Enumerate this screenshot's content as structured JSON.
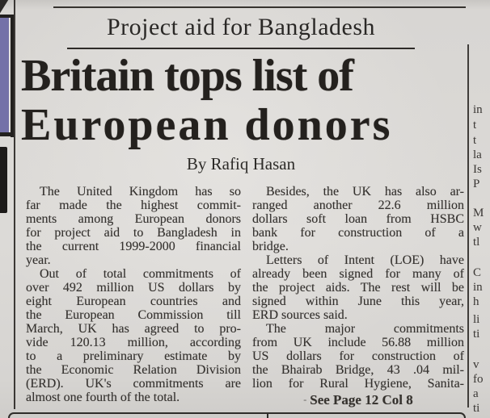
{
  "kicker": "Project aid for Bangladesh",
  "headline": {
    "line1": "Britain tops list of",
    "line2": "European donors"
  },
  "byline": "By Rafiq Hasan",
  "columns": {
    "left": [
      {
        "lines": [
          "The United Kingdom has so",
          "far made the highest commit-",
          "ments among European donors",
          "for project aid to Bangladesh in",
          "the current 1999-2000 financial",
          "year."
        ]
      },
      {
        "lines": [
          "Out of total commitments of",
          "over 492 million US dollars by",
          "eight European countries and",
          "the European Commission till",
          "March, UK has agreed to pro-",
          "vide 120.13 million, according",
          "to a preliminary estimate by",
          "the Economic Relation Division",
          "(ERD). UK's commitments are",
          "almost one fourth of the total."
        ]
      }
    ],
    "right": [
      {
        "lines": [
          "Besides, the UK has also ar-",
          "ranged another 22.6 million",
          "dollars soft loan from HSBC",
          "bank for construction of a",
          "bridge."
        ]
      },
      {
        "lines": [
          "Letters of Intent (LOE) have",
          "already been signed for many of",
          "the project aids. The rest will be",
          "signed within June this year,",
          "ERD sources said."
        ]
      },
      {
        "lines": [
          "The major commitments",
          "from UK include 56.88 million",
          "US dollars for construction of",
          "the Bhairab Bridge, 43 .04 mil-",
          "lion for Rural Hygiene, Sanita-"
        ]
      }
    ]
  },
  "see_page": {
    "marker": "-",
    "text": "See Page 12 Col 8"
  },
  "edge_fragments": {
    "right": [
      "in",
      "t",
      "t",
      "la",
      "Is",
      "P",
      "M",
      "w",
      "tl",
      "C",
      "in",
      "h",
      "li",
      "ti",
      "v",
      "fo",
      "a",
      "ti"
    ]
  },
  "colors": {
    "paper": "#d8d6d3",
    "ink": "#343230",
    "headline_ink": "#24211e",
    "photo_purple": "#7471a8"
  }
}
